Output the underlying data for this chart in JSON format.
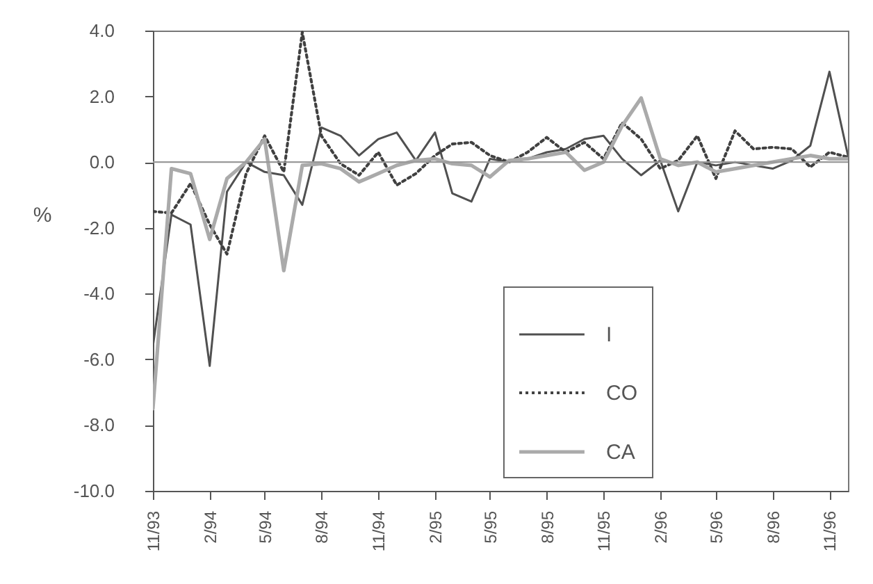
{
  "chart_data": {
    "type": "line",
    "ylabel": "%",
    "x": [
      "1993-11",
      "1993-12",
      "1994-01",
      "1994-02",
      "1994-03",
      "1994-04",
      "1994-05",
      "1994-06",
      "1994-07",
      "1994-08",
      "1994-09",
      "1994-10",
      "1994-11",
      "1994-12",
      "1995-01",
      "1995-02",
      "1995-03",
      "1995-04",
      "1995-05",
      "1995-06",
      "1995-07",
      "1995-08",
      "1995-09",
      "1995-10",
      "1995-11",
      "1995-12",
      "1996-01",
      "1996-02",
      "1996-03",
      "1996-04",
      "1996-05",
      "1996-06",
      "1996-07",
      "1996-08",
      "1996-09",
      "1996-10",
      "1996-11",
      "1996-12"
    ],
    "xlim": [
      "1993-11",
      "1996-12"
    ],
    "xticks": [
      {
        "value": "1993-11",
        "label": "11/93"
      },
      {
        "value": "1994-02",
        "label": "2/94"
      },
      {
        "value": "1994-05",
        "label": "5/94"
      },
      {
        "value": "1994-08",
        "label": "8/94"
      },
      {
        "value": "1994-11",
        "label": "11/94"
      },
      {
        "value": "1995-02",
        "label": "2/95"
      },
      {
        "value": "1995-05",
        "label": "5/95"
      },
      {
        "value": "1995-08",
        "label": "8/95"
      },
      {
        "value": "1995-11",
        "label": "11/95"
      },
      {
        "value": "1996-02",
        "label": "2/96"
      },
      {
        "value": "1996-05",
        "label": "5/96"
      },
      {
        "value": "1996-08",
        "label": "8/96"
      },
      {
        "value": "1996-11",
        "label": "11/96"
      }
    ],
    "ylim": [
      -10,
      4
    ],
    "yticks": [
      {
        "value": 4,
        "label": "4.0"
      },
      {
        "value": 2,
        "label": "2.0"
      },
      {
        "value": 0,
        "label": "0.0"
      },
      {
        "value": -2,
        "label": "-2.0"
      },
      {
        "value": -4,
        "label": "-4.0"
      },
      {
        "value": -6,
        "label": "-6.0"
      },
      {
        "value": -8,
        "label": "-8.0"
      },
      {
        "value": -10,
        "label": "-10.0"
      }
    ],
    "ref_lines": [
      {
        "axis": "y",
        "value": 0,
        "color": "#999999"
      }
    ],
    "legend": "bottom right",
    "series": [
      {
        "name": "I",
        "color": "#505050",
        "line_style": "solid",
        "values": [
          -5.6,
          -1.6,
          -1.9,
          -6.2,
          -0.9,
          0.0,
          -0.3,
          -0.4,
          -1.3,
          1.05,
          0.8,
          0.2,
          0.7,
          0.9,
          0.05,
          0.9,
          -0.95,
          -1.2,
          0.1,
          0.0,
          0.1,
          0.3,
          0.4,
          0.7,
          0.8,
          0.1,
          -0.4,
          0.05,
          -1.5,
          0.0,
          -0.1,
          0.0,
          -0.1,
          -0.2,
          0.05,
          0.5,
          2.75,
          0.2
        ]
      },
      {
        "name": "CO",
        "color": "#404040",
        "line_style": "dotted",
        "values": [
          -1.5,
          -1.55,
          -0.65,
          -1.9,
          -2.8,
          -0.35,
          0.8,
          -0.3,
          3.95,
          0.8,
          -0.05,
          -0.4,
          0.3,
          -0.7,
          -0.35,
          0.2,
          0.55,
          0.6,
          0.2,
          0.0,
          0.3,
          0.75,
          0.3,
          0.6,
          0.1,
          1.2,
          0.7,
          -0.2,
          0.05,
          0.8,
          -0.5,
          0.95,
          0.4,
          0.45,
          0.4,
          -0.15,
          0.3,
          0.15
        ]
      },
      {
        "name": "CA",
        "color": "#aaaaaa",
        "line_style": "solid",
        "values": [
          -7.5,
          -0.2,
          -0.35,
          -2.35,
          -0.5,
          0.0,
          0.7,
          -3.3,
          -0.1,
          -0.05,
          -0.2,
          -0.6,
          -0.35,
          -0.1,
          0.05,
          0.1,
          -0.05,
          -0.1,
          -0.45,
          0.05,
          0.1,
          0.2,
          0.3,
          -0.25,
          0.0,
          1.1,
          1.95,
          0.1,
          -0.1,
          0.0,
          -0.3,
          -0.2,
          -0.1,
          0.0,
          0.1,
          0.2,
          0.1,
          0.1
        ]
      }
    ]
  }
}
